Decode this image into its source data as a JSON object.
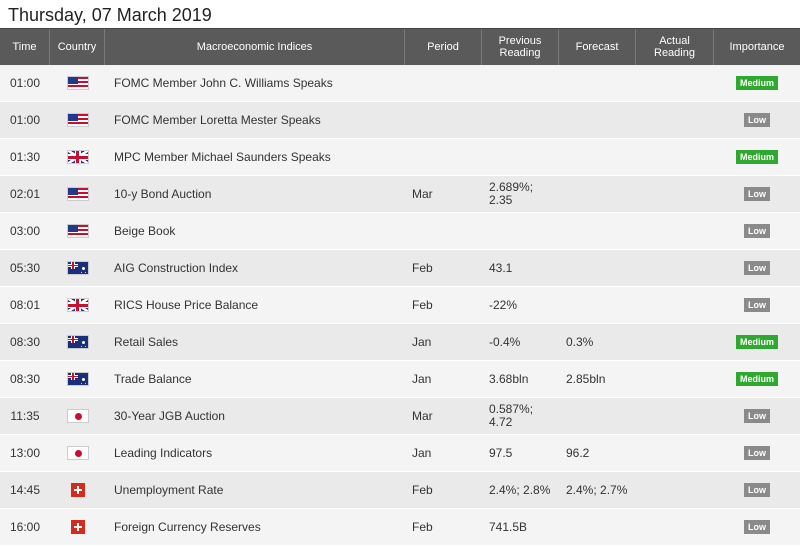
{
  "page_title": "Thursday, 07 March 2019",
  "headers": {
    "time": "Time",
    "country": "Country",
    "indices": "Macroeconomic Indices",
    "period": "Period",
    "previous": "Previous\nReading",
    "forecast": "Forecast",
    "actual": "Actual\nReading",
    "importance": "Importance"
  },
  "colors": {
    "header_bg": "#5a5a5a",
    "medium": "#2fa82f",
    "low": "#8a8a8a"
  },
  "rows": [
    {
      "time": "01:00",
      "country": "us-flag",
      "event": "FOMC Member John C. Williams Speaks",
      "period": "",
      "previous": "",
      "forecast": "",
      "actual": "",
      "importance": "Medium"
    },
    {
      "time": "01:00",
      "country": "us-flag",
      "event": "FOMC Member Loretta Mester Speaks",
      "period": "",
      "previous": "",
      "forecast": "",
      "actual": "",
      "importance": "Low"
    },
    {
      "time": "01:30",
      "country": "uk-flag",
      "event": "MPC Member Michael Saunders Speaks",
      "period": "",
      "previous": "",
      "forecast": "",
      "actual": "",
      "importance": "Medium"
    },
    {
      "time": "02:01",
      "country": "us-flag",
      "event": "10-y Bond Auction",
      "period": "Mar",
      "previous": "2.689%;\n2.35",
      "forecast": "",
      "actual": "",
      "importance": "Low"
    },
    {
      "time": "03:00",
      "country": "us-flag",
      "event": "Beige Book",
      "period": "",
      "previous": "",
      "forecast": "",
      "actual": "",
      "importance": "Low"
    },
    {
      "time": "05:30",
      "country": "au-flag",
      "event": "AIG Construction Index",
      "period": "Feb",
      "previous": "43.1",
      "forecast": "",
      "actual": "",
      "importance": "Low"
    },
    {
      "time": "08:01",
      "country": "uk-flag",
      "event": "RICS House Price Balance",
      "period": "Feb",
      "previous": "-22%",
      "forecast": "",
      "actual": "",
      "importance": "Low"
    },
    {
      "time": "08:30",
      "country": "au-flag",
      "event": "Retail Sales",
      "period": "Jan",
      "previous": "-0.4%",
      "forecast": "0.3%",
      "actual": "",
      "importance": "Medium"
    },
    {
      "time": "08:30",
      "country": "au-flag",
      "event": "Trade Balance",
      "period": "Jan",
      "previous": "3.68bln",
      "forecast": "2.85bln",
      "actual": "",
      "importance": "Medium"
    },
    {
      "time": "11:35",
      "country": "jp-flag",
      "event": "30-Year JGB Auction",
      "period": "Mar",
      "previous": "0.587%;\n4.72",
      "forecast": "",
      "actual": "",
      "importance": "Low"
    },
    {
      "time": "13:00",
      "country": "jp-flag",
      "event": "Leading Indicators",
      "period": "Jan",
      "previous": "97.5",
      "forecast": "96.2",
      "actual": "",
      "importance": "Low"
    },
    {
      "time": "14:45",
      "country": "ch-flag",
      "event": "Unemployment Rate",
      "period": "Feb",
      "previous": "2.4%; 2.8%",
      "forecast": "2.4%; 2.7%",
      "actual": "",
      "importance": "Low"
    },
    {
      "time": "16:00",
      "country": "ch-flag",
      "event": "Foreign Currency Reserves",
      "period": "Feb",
      "previous": "741.5B",
      "forecast": "",
      "actual": "",
      "importance": "Low"
    }
  ]
}
